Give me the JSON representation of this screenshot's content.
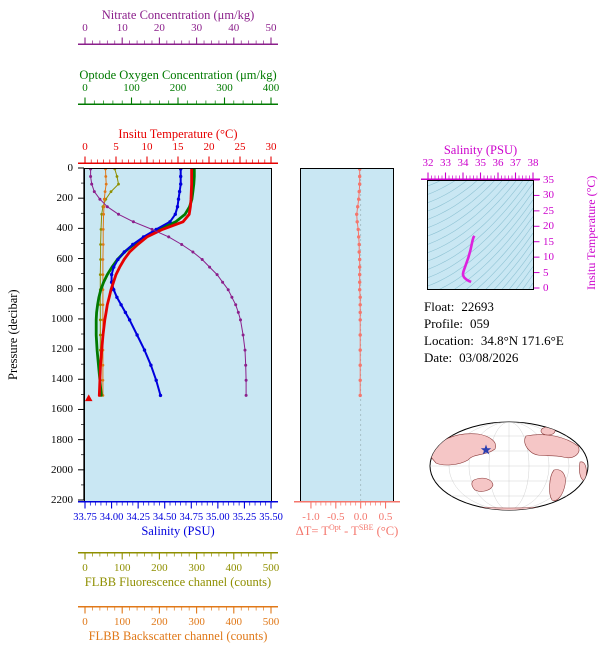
{
  "figure": {
    "plot_bg": "#c9e7f3",
    "frame_color": "#000000"
  },
  "pressure_axis": {
    "label": "Pressure (decibar)",
    "color": "#000000",
    "min": 0,
    "max": 2200,
    "ticks": [
      "0",
      "200",
      "400",
      "600",
      "800",
      "1000",
      "1200",
      "1400",
      "1600",
      "1800",
      "2000",
      "2200"
    ]
  },
  "axes": {
    "nitrate": {
      "title": "Nitrate Concentration (μm/kg)",
      "color": "#8b1f8b",
      "min": 0,
      "max": 50,
      "ticks": [
        "0",
        "10",
        "20",
        "30",
        "40",
        "50"
      ],
      "minor": 4
    },
    "oxygen": {
      "title": "Optode Oxygen Concentration (μm/kg)",
      "color": "#007a00",
      "min": 0,
      "max": 400,
      "ticks": [
        "0",
        "100",
        "200",
        "300",
        "400"
      ],
      "minor": 4
    },
    "temperature": {
      "title": "Insitu Temperature (°C)",
      "color": "#e60000",
      "min": 0,
      "max": 30,
      "ticks": [
        "0",
        "5",
        "10",
        "15",
        "20",
        "25",
        "30"
      ],
      "minor": 4
    },
    "salinity": {
      "title": "Salinity (PSU)",
      "color": "#0000dd",
      "min": 33.75,
      "max": 35.5,
      "ticks": [
        "33.75",
        "34.00",
        "34.25",
        "34.50",
        "34.75",
        "35.00",
        "35.25",
        "35.50"
      ],
      "minor": 4
    },
    "fluorescence": {
      "title": "FLBB Fluorescence channel (counts)",
      "color": "#8f8f00",
      "min": 0,
      "max": 500,
      "ticks": [
        "0",
        "100",
        "200",
        "300",
        "400",
        "500"
      ],
      "minor": 4
    },
    "backscatter": {
      "title": "FLBB Backscatter channel (counts)",
      "color": "#e07818",
      "min": 0,
      "max": 500,
      "ticks": [
        "0",
        "100",
        "200",
        "300",
        "400",
        "500"
      ],
      "minor": 4
    },
    "delta_t": {
      "title_parts": {
        "p1": "ΔT= T",
        "s1": "Opt",
        "p2": " - T",
        "s2": "SBE",
        "p3": " (°C)"
      },
      "color": "#f4766c",
      "min": -1.2,
      "max": 0.65,
      "ticks": [
        "-1.0",
        "-0.5",
        "0.0",
        "0.5"
      ],
      "minor": 4
    },
    "ts_salinity": {
      "title": "Salinity (PSU)",
      "color": "#cc00cc",
      "min": 32,
      "max": 38,
      "ticks": [
        "32",
        "33",
        "34",
        "35",
        "36",
        "37",
        "38"
      ],
      "minor": 4
    },
    "ts_temperature": {
      "label": "Insitu Temperature (°C)",
      "color": "#cc00cc",
      "min": 0,
      "max": 35,
      "ticks": [
        "0",
        "5",
        "10",
        "15",
        "20",
        "25",
        "30",
        "35"
      ]
    }
  },
  "info": {
    "float_label": "Float:",
    "float_value": "22693",
    "profile_label": "Profile:",
    "profile_value": "059",
    "location_label": "Location:",
    "location_value": "34.8°N  171.6°E",
    "date_label": "Date:",
    "date_value": "03/08/2026"
  },
  "map": {
    "land_color": "#f5c6c6",
    "ocean_color": "#ffffff",
    "star_color": "#2a3eb1"
  },
  "chart_data": [
    {
      "id": "profiles-vs-pressure",
      "type": "line",
      "ylabel": "Pressure (decibar)",
      "ylim": [
        0,
        2200
      ],
      "note": "points are [pressure_db, value]",
      "series": [
        {
          "name": "FLBB Fluorescence channel (counts)",
          "color": "#8f8f00",
          "xlim": [
            0,
            500
          ],
          "width": 1,
          "marker": "circle",
          "marker_r": 1.4,
          "points": [
            [
              0,
              80
            ],
            [
              50,
              86
            ],
            [
              100,
              90
            ],
            [
              150,
              70
            ],
            [
              200,
              56
            ],
            [
              250,
              48
            ],
            [
              300,
              45
            ],
            [
              400,
              43
            ],
            [
              500,
              42
            ],
            [
              600,
              42
            ],
            [
              700,
              41
            ],
            [
              800,
              41
            ],
            [
              900,
              41
            ],
            [
              1000,
              41
            ],
            [
              1100,
              41
            ],
            [
              1200,
              41
            ],
            [
              1300,
              41
            ],
            [
              1400,
              41
            ],
            [
              1500,
              41
            ]
          ]
        },
        {
          "name": "FLBB Backscatter channel (counts)",
          "color": "#e07818",
          "xlim": [
            0,
            500
          ],
          "width": 1,
          "marker": "circle",
          "marker_r": 1.4,
          "points": [
            [
              0,
              55
            ],
            [
              50,
              56
            ],
            [
              100,
              57
            ],
            [
              150,
              54
            ],
            [
              200,
              52
            ],
            [
              250,
              51
            ],
            [
              300,
              50
            ],
            [
              400,
              49
            ],
            [
              500,
              49
            ],
            [
              600,
              48
            ],
            [
              700,
              48
            ],
            [
              800,
              48
            ],
            [
              900,
              48
            ],
            [
              1000,
              48
            ],
            [
              1100,
              48
            ],
            [
              1200,
              48
            ],
            [
              1300,
              48
            ],
            [
              1400,
              48
            ],
            [
              1500,
              48
            ]
          ]
        },
        {
          "name": "Optode Oxygen Concentration (μm/kg)",
          "color": "#007a00",
          "xlim": [
            0,
            400
          ],
          "width": 2.8,
          "marker": "none",
          "points": [
            [
              0,
              235
            ],
            [
              50,
              235
            ],
            [
              100,
              234
            ],
            [
              150,
              232
            ],
            [
              200,
              230
            ],
            [
              250,
              225
            ],
            [
              300,
              215
            ],
            [
              350,
              195
            ],
            [
              400,
              160
            ],
            [
              450,
              130
            ],
            [
              500,
              105
            ],
            [
              550,
              85
            ],
            [
              600,
              70
            ],
            [
              650,
              58
            ],
            [
              700,
              48
            ],
            [
              750,
              40
            ],
            [
              800,
              34
            ],
            [
              850,
              30
            ],
            [
              900,
              27
            ],
            [
              950,
              25
            ],
            [
              1000,
              24
            ],
            [
              1100,
              24
            ],
            [
              1200,
              26
            ],
            [
              1300,
              29
            ],
            [
              1400,
              32
            ],
            [
              1500,
              35
            ]
          ]
        },
        {
          "name": "Salinity (PSU)",
          "color": "#0000dd",
          "xlim": [
            33.75,
            35.5
          ],
          "width": 2,
          "marker": "circle",
          "marker_r": 1.7,
          "points": [
            [
              0,
              34.65
            ],
            [
              50,
              34.65
            ],
            [
              100,
              34.65
            ],
            [
              150,
              34.64
            ],
            [
              200,
              34.63
            ],
            [
              250,
              34.62
            ],
            [
              300,
              34.6
            ],
            [
              350,
              34.55
            ],
            [
              400,
              34.42
            ],
            [
              450,
              34.3
            ],
            [
              500,
              34.2
            ],
            [
              550,
              34.12
            ],
            [
              600,
              34.06
            ],
            [
              650,
              34.02
            ],
            [
              700,
              34.0
            ],
            [
              750,
              34.0
            ],
            [
              800,
              34.02
            ],
            [
              850,
              34.05
            ],
            [
              900,
              34.09
            ],
            [
              950,
              34.13
            ],
            [
              1000,
              34.17
            ],
            [
              1100,
              34.24
            ],
            [
              1200,
              34.31
            ],
            [
              1300,
              34.37
            ],
            [
              1400,
              34.42
            ],
            [
              1500,
              34.46
            ]
          ]
        },
        {
          "name": "Insitu Temperature (°C)",
          "color": "#e60000",
          "xlim": [
            0,
            30
          ],
          "width": 2.8,
          "marker": "none",
          "points": [
            [
              0,
              17.2
            ],
            [
              50,
              17.2
            ],
            [
              100,
              17.2
            ],
            [
              150,
              17.15
            ],
            [
              200,
              17.1
            ],
            [
              250,
              17.0
            ],
            [
              300,
              16.8
            ],
            [
              350,
              15.8
            ],
            [
              400,
              12.5
            ],
            [
              450,
              10.0
            ],
            [
              500,
              8.5
            ],
            [
              550,
              7.2
            ],
            [
              600,
              6.3
            ],
            [
              650,
              5.6
            ],
            [
              700,
              5.0
            ],
            [
              750,
              4.6
            ],
            [
              800,
              4.2
            ],
            [
              850,
              3.9
            ],
            [
              900,
              3.6
            ],
            [
              950,
              3.4
            ],
            [
              1000,
              3.2
            ],
            [
              1100,
              2.9
            ],
            [
              1200,
              2.7
            ],
            [
              1300,
              2.5
            ],
            [
              1400,
              2.4
            ],
            [
              1500,
              2.3
            ]
          ]
        },
        {
          "name": "Nitrate Concentration (μm/kg)",
          "color": "#8b1f8b",
          "xlim": [
            0,
            50
          ],
          "width": 1,
          "marker": "circle",
          "marker_r": 1.5,
          "points": [
            [
              0,
              1.5
            ],
            [
              50,
              1.5
            ],
            [
              100,
              1.8
            ],
            [
              150,
              2.5
            ],
            [
              200,
              4.0
            ],
            [
              250,
              6.0
            ],
            [
              300,
              9.0
            ],
            [
              350,
              13.0
            ],
            [
              400,
              18.0
            ],
            [
              450,
              22.5
            ],
            [
              500,
              26.0
            ],
            [
              550,
              29.0
            ],
            [
              600,
              31.5
            ],
            [
              650,
              33.5
            ],
            [
              700,
              35.5
            ],
            [
              750,
              37.0
            ],
            [
              800,
              38.5
            ],
            [
              850,
              39.5
            ],
            [
              900,
              40.5
            ],
            [
              950,
              41.2
            ],
            [
              1000,
              41.8
            ],
            [
              1100,
              42.5
            ],
            [
              1200,
              43.0
            ],
            [
              1300,
              43.2
            ],
            [
              1400,
              43.3
            ],
            [
              1500,
              43.3
            ]
          ]
        },
        {
          "name": "profile-end-marker",
          "color": "#e60000",
          "xlim": [
            0,
            30
          ],
          "width": 0,
          "marker": "triangle",
          "points": [
            [
              1520,
              0.6
            ]
          ]
        }
      ]
    },
    {
      "id": "optode-sbe-temperature-difference",
      "type": "scatter",
      "xlabel": "ΔT= T^Opt - T^SBE (°C)",
      "xlim": [
        -1.2,
        0.65
      ],
      "ylim": [
        0,
        2200
      ],
      "vline_x": 0.0,
      "series": [
        {
          "name": "ΔT",
          "color": "#f4766c",
          "xlim": [
            -1.2,
            0.65
          ],
          "width": 1,
          "marker": "circle",
          "marker_r": 1.7,
          "points": [
            [
              0,
              -0.02
            ],
            [
              50,
              -0.02
            ],
            [
              100,
              -0.02
            ],
            [
              150,
              -0.03
            ],
            [
              200,
              -0.04
            ],
            [
              250,
              -0.06
            ],
            [
              300,
              -0.08
            ],
            [
              350,
              -0.07
            ],
            [
              400,
              -0.05
            ],
            [
              450,
              -0.04
            ],
            [
              500,
              -0.03
            ],
            [
              550,
              -0.03
            ],
            [
              600,
              -0.02
            ],
            [
              650,
              -0.02
            ],
            [
              700,
              -0.02
            ],
            [
              750,
              -0.02
            ],
            [
              800,
              -0.02
            ],
            [
              850,
              -0.01
            ],
            [
              900,
              -0.01
            ],
            [
              950,
              -0.01
            ],
            [
              1000,
              -0.01
            ],
            [
              1100,
              -0.01
            ],
            [
              1200,
              -0.01
            ],
            [
              1300,
              -0.01
            ],
            [
              1400,
              -0.01
            ],
            [
              1500,
              -0.01
            ]
          ]
        }
      ]
    },
    {
      "id": "ts-diagram",
      "type": "line",
      "xlabel": "Salinity (PSU)",
      "ylabel": "Insitu Temperature (°C)",
      "xlim": [
        32,
        38
      ],
      "ylim": [
        0,
        35
      ],
      "contour_color": "#8fc3d4",
      "series": [
        {
          "name": "T-S profile",
          "color": "#dd22dd",
          "width": 2.6,
          "marker": "none",
          "points": [
            [
              34.65,
              17.2
            ],
            [
              34.64,
              17.1
            ],
            [
              34.63,
              17.0
            ],
            [
              34.6,
              16.8
            ],
            [
              34.55,
              15.8
            ],
            [
              34.42,
              12.5
            ],
            [
              34.3,
              10.0
            ],
            [
              34.2,
              8.5
            ],
            [
              34.12,
              7.2
            ],
            [
              34.06,
              6.3
            ],
            [
              34.02,
              5.6
            ],
            [
              34.0,
              5.0
            ],
            [
              34.0,
              4.6
            ],
            [
              34.02,
              4.2
            ],
            [
              34.05,
              3.9
            ],
            [
              34.09,
              3.6
            ],
            [
              34.13,
              3.4
            ],
            [
              34.17,
              3.2
            ],
            [
              34.24,
              2.9
            ],
            [
              34.31,
              2.7
            ],
            [
              34.37,
              2.5
            ],
            [
              34.42,
              2.4
            ],
            [
              34.46,
              2.3
            ]
          ]
        }
      ]
    }
  ]
}
